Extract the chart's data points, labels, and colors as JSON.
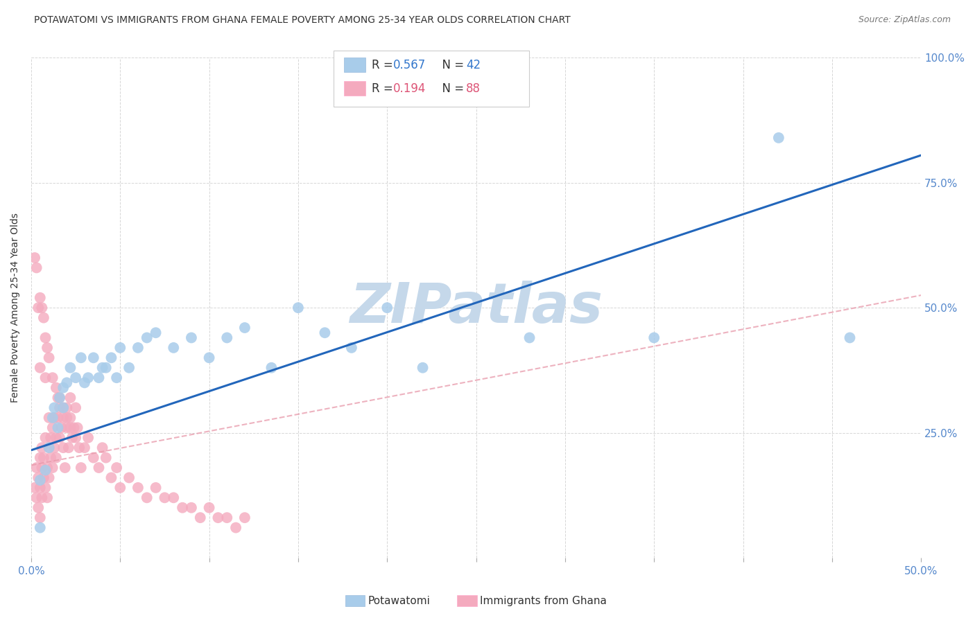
{
  "title": "POTAWATOMI VS IMMIGRANTS FROM GHANA FEMALE POVERTY AMONG 25-34 YEAR OLDS CORRELATION CHART",
  "source": "Source: ZipAtlas.com",
  "ylabel": "Female Poverty Among 25-34 Year Olds",
  "xlim": [
    0.0,
    0.5
  ],
  "ylim": [
    0.0,
    1.0
  ],
  "xtick_positions": [
    0.0,
    0.05,
    0.1,
    0.15,
    0.2,
    0.25,
    0.3,
    0.35,
    0.4,
    0.45,
    0.5
  ],
  "xtick_labels": [
    "0.0%",
    "",
    "",
    "",
    "",
    "",
    "",
    "",
    "",
    "",
    "50.0%"
  ],
  "ytick_positions": [
    0.0,
    0.25,
    0.5,
    0.75,
    1.0
  ],
  "ytick_labels": [
    "",
    "25.0%",
    "50.0%",
    "75.0%",
    "100.0%"
  ],
  "blue_R": 0.567,
  "blue_N": 42,
  "pink_R": 0.194,
  "pink_N": 88,
  "blue_color": "#A8CCEA",
  "pink_color": "#F4AABE",
  "blue_line_color": "#2266BB",
  "pink_line_color": "#E899AA",
  "watermark": "ZIPatlas",
  "watermark_color": "#C5D8EA",
  "background_color": "#FFFFFF",
  "blue_line_x": [
    0.0,
    0.5
  ],
  "blue_line_y": [
    0.215,
    0.805
  ],
  "pink_line_x": [
    0.0,
    0.5
  ],
  "pink_line_y": [
    0.185,
    0.525
  ],
  "blue_x": [
    0.005,
    0.008,
    0.01,
    0.012,
    0.013,
    0.015,
    0.016,
    0.018,
    0.018,
    0.02,
    0.022,
    0.025,
    0.028,
    0.03,
    0.032,
    0.035,
    0.038,
    0.04,
    0.042,
    0.045,
    0.048,
    0.05,
    0.055,
    0.06,
    0.065,
    0.07,
    0.08,
    0.09,
    0.1,
    0.11,
    0.12,
    0.135,
    0.15,
    0.165,
    0.18,
    0.2,
    0.22,
    0.28,
    0.35,
    0.42,
    0.46,
    0.005
  ],
  "blue_y": [
    0.155,
    0.175,
    0.22,
    0.28,
    0.3,
    0.26,
    0.32,
    0.3,
    0.34,
    0.35,
    0.38,
    0.36,
    0.4,
    0.35,
    0.36,
    0.4,
    0.36,
    0.38,
    0.38,
    0.4,
    0.36,
    0.42,
    0.38,
    0.42,
    0.44,
    0.45,
    0.42,
    0.44,
    0.4,
    0.44,
    0.46,
    0.38,
    0.5,
    0.45,
    0.42,
    0.5,
    0.38,
    0.44,
    0.44,
    0.84,
    0.44,
    0.06
  ],
  "pink_x": [
    0.002,
    0.003,
    0.003,
    0.004,
    0.004,
    0.005,
    0.005,
    0.005,
    0.006,
    0.006,
    0.006,
    0.007,
    0.007,
    0.008,
    0.008,
    0.009,
    0.009,
    0.01,
    0.01,
    0.01,
    0.011,
    0.011,
    0.012,
    0.012,
    0.013,
    0.013,
    0.014,
    0.014,
    0.015,
    0.015,
    0.016,
    0.016,
    0.017,
    0.018,
    0.018,
    0.019,
    0.02,
    0.02,
    0.021,
    0.022,
    0.022,
    0.023,
    0.024,
    0.025,
    0.026,
    0.027,
    0.028,
    0.03,
    0.032,
    0.035,
    0.038,
    0.04,
    0.042,
    0.045,
    0.048,
    0.05,
    0.055,
    0.06,
    0.065,
    0.07,
    0.075,
    0.08,
    0.085,
    0.09,
    0.095,
    0.1,
    0.105,
    0.11,
    0.115,
    0.12,
    0.002,
    0.003,
    0.004,
    0.005,
    0.006,
    0.007,
    0.008,
    0.009,
    0.01,
    0.012,
    0.014,
    0.016,
    0.018,
    0.02,
    0.022,
    0.025,
    0.005,
    0.008
  ],
  "pink_y": [
    0.14,
    0.12,
    0.18,
    0.16,
    0.1,
    0.2,
    0.14,
    0.08,
    0.18,
    0.12,
    0.22,
    0.16,
    0.2,
    0.14,
    0.24,
    0.18,
    0.12,
    0.22,
    0.16,
    0.28,
    0.2,
    0.24,
    0.18,
    0.26,
    0.22,
    0.28,
    0.2,
    0.24,
    0.28,
    0.32,
    0.24,
    0.3,
    0.26,
    0.28,
    0.22,
    0.18,
    0.26,
    0.3,
    0.22,
    0.28,
    0.32,
    0.24,
    0.26,
    0.3,
    0.26,
    0.22,
    0.18,
    0.22,
    0.24,
    0.2,
    0.18,
    0.22,
    0.2,
    0.16,
    0.18,
    0.14,
    0.16,
    0.14,
    0.12,
    0.14,
    0.12,
    0.12,
    0.1,
    0.1,
    0.08,
    0.1,
    0.08,
    0.08,
    0.06,
    0.08,
    0.6,
    0.58,
    0.5,
    0.52,
    0.5,
    0.48,
    0.44,
    0.42,
    0.4,
    0.36,
    0.34,
    0.32,
    0.3,
    0.28,
    0.26,
    0.24,
    0.38,
    0.36
  ]
}
